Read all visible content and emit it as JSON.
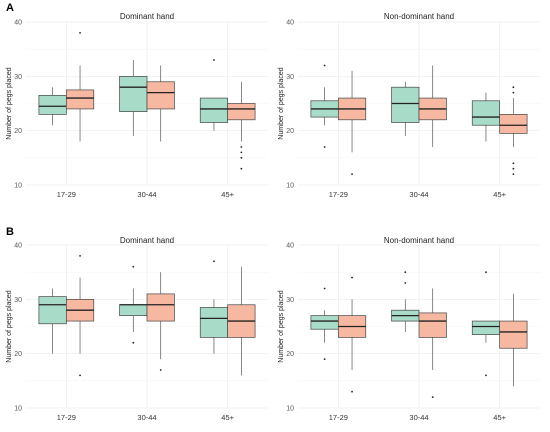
{
  "figure": {
    "panels": [
      {
        "letter": "A"
      },
      {
        "letter": "B"
      }
    ]
  },
  "chart_data": [
    {
      "type": "box",
      "panel": "A",
      "title": "Dominant hand",
      "ylabel": "Number of pegs placed",
      "categories": [
        "17-29",
        "30-44",
        "45+"
      ],
      "ylim": [
        10,
        40
      ],
      "yticks": [
        10,
        20,
        30,
        40
      ],
      "grid": true,
      "series": [
        {
          "color": "#a8dcc8",
          "boxes": [
            {
              "min": 21,
              "q1": 23,
              "median": 24.5,
              "q3": 26.5,
              "max": 28,
              "outliers": []
            },
            {
              "min": 19,
              "q1": 23.5,
              "median": 28,
              "q3": 30,
              "max": 33,
              "outliers": []
            },
            {
              "min": 20,
              "q1": 21.5,
              "median": 24,
              "q3": 26,
              "max": 26,
              "outliers": [
                33
              ]
            }
          ]
        },
        {
          "color": "#f7b8a1",
          "boxes": [
            {
              "min": 18,
              "q1": 24,
              "median": 26,
              "q3": 27.5,
              "max": 32,
              "outliers": [
                38
              ]
            },
            {
              "min": 18,
              "q1": 24,
              "median": 27,
              "q3": 29,
              "max": 32,
              "outliers": []
            },
            {
              "min": 18,
              "q1": 22,
              "median": 24,
              "q3": 25,
              "max": 29,
              "outliers": [
                17,
                16,
                15,
                13
              ]
            }
          ]
        }
      ]
    },
    {
      "type": "box",
      "panel": "A",
      "title": "Non-dominant hand",
      "ylabel": "Number of pegs placed",
      "categories": [
        "17-29",
        "30-44",
        "45+"
      ],
      "ylim": [
        10,
        40
      ],
      "yticks": [
        10,
        20,
        30,
        40
      ],
      "grid": true,
      "series": [
        {
          "color": "#a8dcc8",
          "boxes": [
            {
              "min": 21,
              "q1": 22.5,
              "median": 24,
              "q3": 25.5,
              "max": 28,
              "outliers": [
                32,
                17
              ]
            },
            {
              "min": 19,
              "q1": 21.5,
              "median": 25,
              "q3": 28,
              "max": 29,
              "outliers": []
            },
            {
              "min": 18,
              "q1": 21,
              "median": 22.5,
              "q3": 25.5,
              "max": 27,
              "outliers": []
            }
          ]
        },
        {
          "color": "#f7b8a1",
          "boxes": [
            {
              "min": 16,
              "q1": 22,
              "median": 24,
              "q3": 26,
              "max": 31,
              "outliers": [
                12
              ]
            },
            {
              "min": 17,
              "q1": 22,
              "median": 24,
              "q3": 26,
              "max": 32,
              "outliers": []
            },
            {
              "min": 17,
              "q1": 19.5,
              "median": 21,
              "q3": 23,
              "max": 26,
              "outliers": [
                28,
                27,
                14,
                13,
                12
              ]
            }
          ]
        }
      ]
    },
    {
      "type": "box",
      "panel": "B",
      "title": "Dominant hand",
      "ylabel": "Number of pegs placed",
      "categories": [
        "17-29",
        "30-44",
        "45+"
      ],
      "ylim": [
        10,
        40
      ],
      "yticks": [
        10,
        20,
        30,
        40
      ],
      "grid": true,
      "series": [
        {
          "color": "#a8dcc8",
          "boxes": [
            {
              "min": 20,
              "q1": 25.5,
              "median": 29,
              "q3": 30.5,
              "max": 32,
              "outliers": []
            },
            {
              "min": 24,
              "q1": 27,
              "median": 29,
              "q3": 29,
              "max": 32,
              "outliers": [
                36,
                22
              ]
            },
            {
              "min": 20,
              "q1": 23,
              "median": 26.5,
              "q3": 28.5,
              "max": 30,
              "outliers": [
                37
              ]
            }
          ]
        },
        {
          "color": "#f7b8a1",
          "boxes": [
            {
              "min": 20,
              "q1": 26,
              "median": 28,
              "q3": 30,
              "max": 34,
              "outliers": [
                38,
                16
              ]
            },
            {
              "min": 19,
              "q1": 26,
              "median": 29,
              "q3": 31,
              "max": 35,
              "outliers": [
                17
              ]
            },
            {
              "min": 16,
              "q1": 23,
              "median": 26,
              "q3": 29,
              "max": 36,
              "outliers": []
            }
          ]
        }
      ]
    },
    {
      "type": "box",
      "panel": "B",
      "title": "Non-dominant hand",
      "ylabel": "Number of pegs placed",
      "categories": [
        "17-29",
        "30-44",
        "45+"
      ],
      "ylim": [
        10,
        40
      ],
      "yticks": [
        10,
        20,
        30,
        40
      ],
      "grid": true,
      "series": [
        {
          "color": "#a8dcc8",
          "boxes": [
            {
              "min": 22,
              "q1": 24.5,
              "median": 26,
              "q3": 27,
              "max": 28,
              "outliers": [
                32,
                19
              ]
            },
            {
              "min": 24,
              "q1": 26,
              "median": 27,
              "q3": 28,
              "max": 30,
              "outliers": [
                35,
                33
              ]
            },
            {
              "min": 22,
              "q1": 23.5,
              "median": 25,
              "q3": 26,
              "max": 26,
              "outliers": [
                35,
                16
              ]
            }
          ]
        },
        {
          "color": "#f7b8a1",
          "boxes": [
            {
              "min": 17,
              "q1": 23,
              "median": 25,
              "q3": 27,
              "max": 30,
              "outliers": [
                34,
                13
              ]
            },
            {
              "min": 17,
              "q1": 23,
              "median": 26,
              "q3": 27.5,
              "max": 32,
              "outliers": [
                12
              ]
            },
            {
              "min": 14,
              "q1": 21,
              "median": 24,
              "q3": 26,
              "max": 31,
              "outliers": []
            }
          ]
        }
      ]
    }
  ]
}
